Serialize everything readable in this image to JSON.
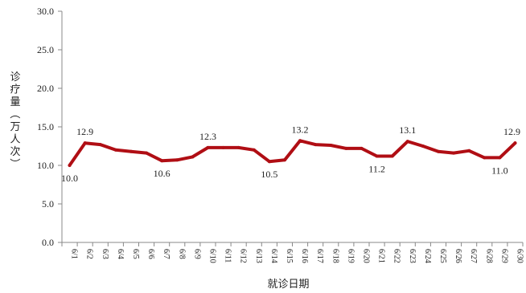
{
  "chart_data": {
    "type": "line",
    "title": "",
    "xlabel": "就诊日期",
    "ylabel": "诊疗量（万人次）",
    "ylim": [
      0,
      30
    ],
    "yticks": [
      "0.0",
      "5.0",
      "10.0",
      "15.0",
      "20.0",
      "25.0",
      "30.0"
    ],
    "categories": [
      "6/1",
      "6/2",
      "6/3",
      "6/4",
      "6/5",
      "6/6",
      "6/7",
      "6/8",
      "6/9",
      "6/10",
      "6/11",
      "6/12",
      "6/13",
      "6/14",
      "6/15",
      "6/16",
      "6/17",
      "6/18",
      "6/19",
      "6/20",
      "6/21",
      "6/22",
      "6/23",
      "6/24",
      "6/25",
      "6/26",
      "6/27",
      "6/28",
      "6/29",
      "6/30"
    ],
    "series": [
      {
        "values": [
          10.0,
          12.9,
          12.7,
          12.0,
          11.8,
          11.6,
          10.6,
          10.7,
          11.1,
          12.3,
          12.3,
          12.3,
          12.0,
          10.5,
          10.7,
          13.2,
          12.7,
          12.6,
          12.2,
          12.2,
          11.2,
          11.2,
          13.1,
          12.5,
          11.8,
          11.6,
          11.9,
          11.0,
          11.0,
          12.9
        ],
        "color": "#b00e14"
      }
    ],
    "data_labels": [
      {
        "index": 0,
        "text": "10.0"
      },
      {
        "index": 1,
        "text": "12.9"
      },
      {
        "index": 6,
        "text": "10.6"
      },
      {
        "index": 9,
        "text": "12.3"
      },
      {
        "index": 13,
        "text": "10.5"
      },
      {
        "index": 15,
        "text": "13.2"
      },
      {
        "index": 20,
        "text": "11.2"
      },
      {
        "index": 22,
        "text": "13.1"
      },
      {
        "index": 28,
        "text": "11.0"
      },
      {
        "index": 29,
        "text": "12.9"
      }
    ],
    "grid": false,
    "legend": "none"
  }
}
